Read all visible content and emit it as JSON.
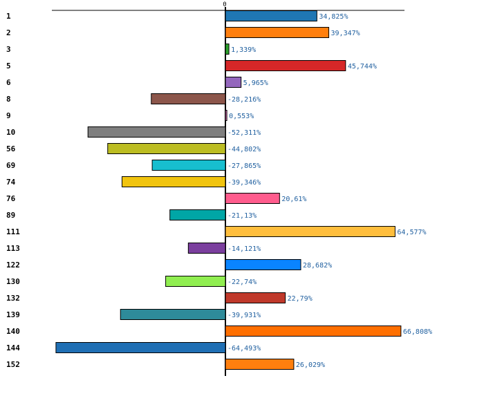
{
  "chart_data": {
    "type": "bar",
    "orientation": "horizontal",
    "title": "",
    "xlabel": "",
    "ylabel": "",
    "zero_tick_label": "0",
    "xlim": [
      -100,
      100
    ],
    "grid": false,
    "legend": "none",
    "categories": [
      "1",
      "2",
      "3",
      "5",
      "6",
      "8",
      "9",
      "10",
      "56",
      "69",
      "74",
      "76",
      "89",
      "111",
      "113",
      "122",
      "130",
      "132",
      "139",
      "140",
      "144",
      "152"
    ],
    "values": [
      34.825,
      39.347,
      1.339,
      45.744,
      5.965,
      -28.216,
      0.553,
      -52.311,
      -44.802,
      -27.865,
      -39.346,
      20.61,
      -21.13,
      64.577,
      -14.121,
      28.682,
      -22.74,
      22.79,
      -39.931,
      66.808,
      -64.493,
      26.029
    ],
    "value_labels": [
      "34,825%",
      "39,347%",
      "1,339%",
      "45,744%",
      "5,965%",
      "-28,216%",
      "0,553%",
      "-52,311%",
      "-44,802%",
      "-27,865%",
      "-39,346%",
      "20,61%",
      "-21,13%",
      "64,577%",
      "-14,121%",
      "28,682%",
      "-22,74%",
      "22,79%",
      "-39,931%",
      "66,808%",
      "-64,493%",
      "26,029%"
    ],
    "colors": [
      "#1f77b4",
      "#ff7f0e",
      "#2ca02c",
      "#d62728",
      "#9467bd",
      "#8c564b",
      "#e377c2",
      "#7f7f7f",
      "#bcbd22",
      "#17becf",
      "#f1c40f",
      "#ff5c8d",
      "#00a6a6",
      "#ffbe3d",
      "#7b3f9e",
      "#0a84ff",
      "#90ee50",
      "#c0392b",
      "#2e8b9a",
      "#ff6f00",
      "#1f6fb4",
      "#ff7f0e"
    ]
  }
}
